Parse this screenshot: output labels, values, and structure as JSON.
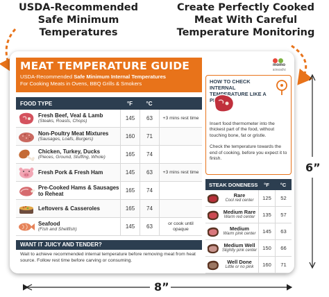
{
  "callouts": {
    "left": "USDA-Recommended Safe Minimum Temperatures",
    "right": "Create Perfectly Cooked Meat With Careful Temperature Monitoring"
  },
  "dimensions": {
    "width": "8”",
    "height": "6”"
  },
  "brand": {
    "line1": "momo",
    "line2": "sinoshi",
    "colors": [
      "#e9473a",
      "#7cb342"
    ]
  },
  "header": {
    "title": "MEAT TEMPERATURE GUIDE",
    "subtitle_prefix": "USDA-Recommended ",
    "subtitle_bold": "Safe Minimum Internal Temperatures",
    "subtitle_line2": "For Cooking Meats in Ovens, BBQ Grills & Smokers"
  },
  "food_table": {
    "headers": {
      "type": "FOOD TYPE",
      "f": "°F",
      "c": "°C"
    },
    "rows": [
      {
        "icon": "steak-icon",
        "name": "Fresh Beef, Veal & Lamb",
        "desc": "(Steaks, Roasts, Chops)",
        "f": "145",
        "c": "63",
        "rest": "+3 mins rest time"
      },
      {
        "icon": "ground-meat-icon",
        "name": "Non-Poultry Meat Mixtures",
        "desc": "(Sausages, Loafs, Burgers)",
        "f": "160",
        "c": "71",
        "rest": ""
      },
      {
        "icon": "drumstick-icon",
        "name": "Chicken, Turkey, Ducks",
        "desc": "(Pieces, Ground, Stuffing, Whole)",
        "f": "165",
        "c": "74",
        "rest": ""
      },
      {
        "icon": "pig-icon",
        "name": "Fresh Pork & Fresh Ham",
        "desc": "",
        "f": "145",
        "c": "63",
        "rest": "+3 mins rest time"
      },
      {
        "icon": "ham-icon",
        "name": "Pre-Cooked Hams & Sausages to Reheat",
        "desc": "",
        "f": "165",
        "c": "74",
        "rest": ""
      },
      {
        "icon": "casserole-icon",
        "name": "Leftovers & Casseroles",
        "desc": "",
        "f": "165",
        "c": "74",
        "rest": ""
      },
      {
        "icon": "fish-icon",
        "name": "Seafood",
        "desc": "(Fish and Shellfish)",
        "f": "145",
        "c": "63",
        "rest": "or cook until opaque"
      }
    ]
  },
  "juicy": {
    "title": "WANT IT JUICY AND TENDER?",
    "body": "Wait to achieve recommended internal temperature before removing meat from heat source. Follow rest time before carving or consuming."
  },
  "howto": {
    "title": "HOW TO CHECK INTERNAL TEMPERATURE LIKE A PRO?",
    "body": "Insert food thermometer into the thickest part of the food, without touching bone, fat or gristle.",
    "body2": "Check the temperature towards the end of cooking, before you expect it to finish."
  },
  "steak_table": {
    "headers": {
      "name": "STEAK DONENESS",
      "f": "°F",
      "c": "°C"
    },
    "rows": [
      {
        "name": "Rare",
        "desc": "Cool red center",
        "f": "125",
        "c": "52",
        "center": "#b8303a"
      },
      {
        "name": "Medium Rare",
        "desc": "Warm red center",
        "f": "135",
        "c": "57",
        "center": "#cc4a52"
      },
      {
        "name": "Medium",
        "desc": "Warm pink center",
        "f": "145",
        "c": "63",
        "center": "#d9777c"
      },
      {
        "name": "Medium Well",
        "desc": "Slightly pink center",
        "f": "150",
        "c": "66",
        "center": "#c9958e"
      },
      {
        "name": "Well Done",
        "desc": "Little or no pink",
        "f": "160",
        "c": "71",
        "center": "#9b7763"
      }
    ]
  },
  "colors": {
    "accent": "#e8731a",
    "navy": "#2c3e50"
  }
}
